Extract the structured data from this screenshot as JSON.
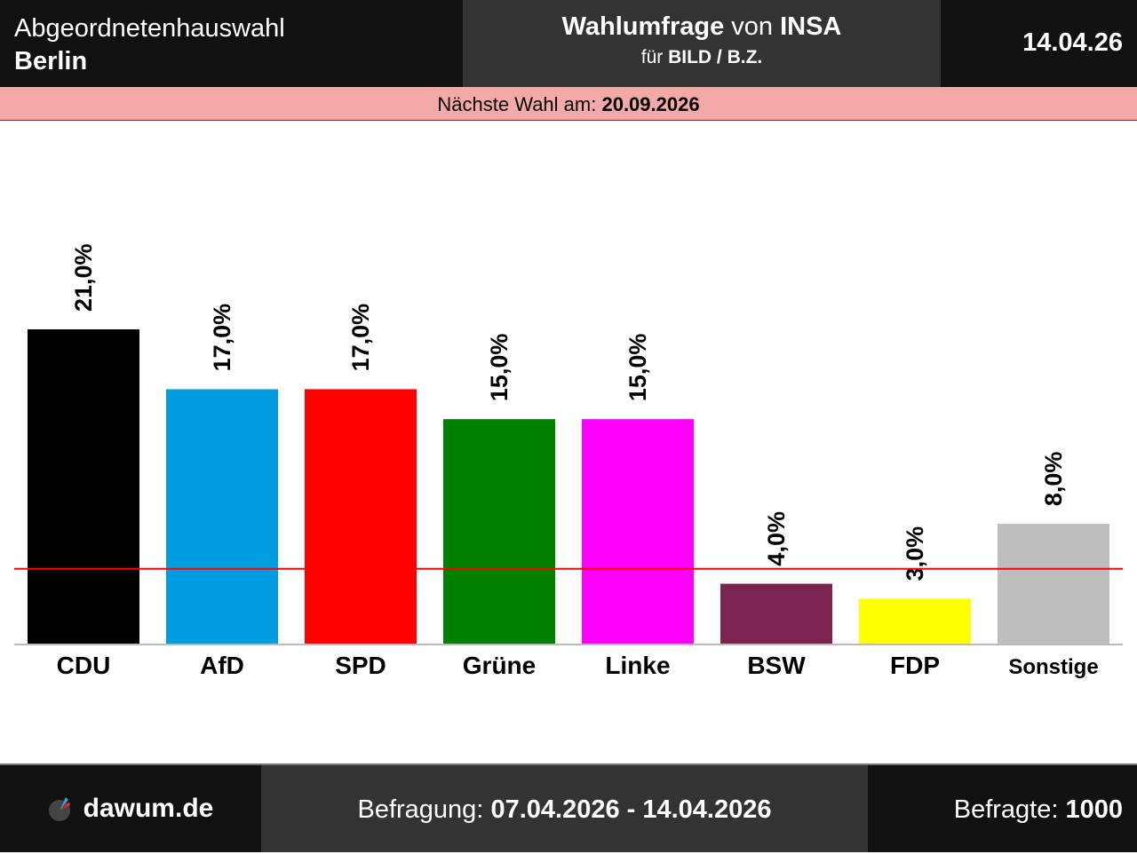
{
  "header": {
    "election": "Abgeordnetenhauswahl",
    "region": "Berlin",
    "poll_prefix": "Wahlumfrage",
    "poll_von": "von",
    "institute": "INSA",
    "client_prefix": "für",
    "client": "BILD / B.Z.",
    "date": "14.04.26"
  },
  "next_election": {
    "label": "Nächste Wahl am:",
    "date": "20.09.2026"
  },
  "footer": {
    "site": "dawum.de",
    "survey_label": "Befragung:",
    "survey_period": "07.04.2026 - 14.04.2026",
    "respondents_label": "Befragte:",
    "respondents": "1000"
  },
  "chart_data": {
    "type": "bar",
    "categories": [
      "CDU",
      "AfD",
      "SPD",
      "Grüne",
      "Linke",
      "BSW",
      "FDP",
      "Sonstige"
    ],
    "values": [
      21.0,
      17.0,
      17.0,
      15.0,
      15.0,
      4.0,
      3.0,
      8.0
    ],
    "labels": [
      "21,0%",
      "17,0%",
      "17,0%",
      "15,0%",
      "15,0%",
      "4,0%",
      "3,0%",
      "8,0%"
    ],
    "colors": [
      "#000000",
      "#009ee0",
      "#ff0000",
      "#008000",
      "#ff00ff",
      "#7b2450",
      "#ffff00",
      "#bebebe"
    ],
    "threshold": 5,
    "threshold_color": "#ff0000",
    "ylim": [
      0,
      25
    ]
  }
}
